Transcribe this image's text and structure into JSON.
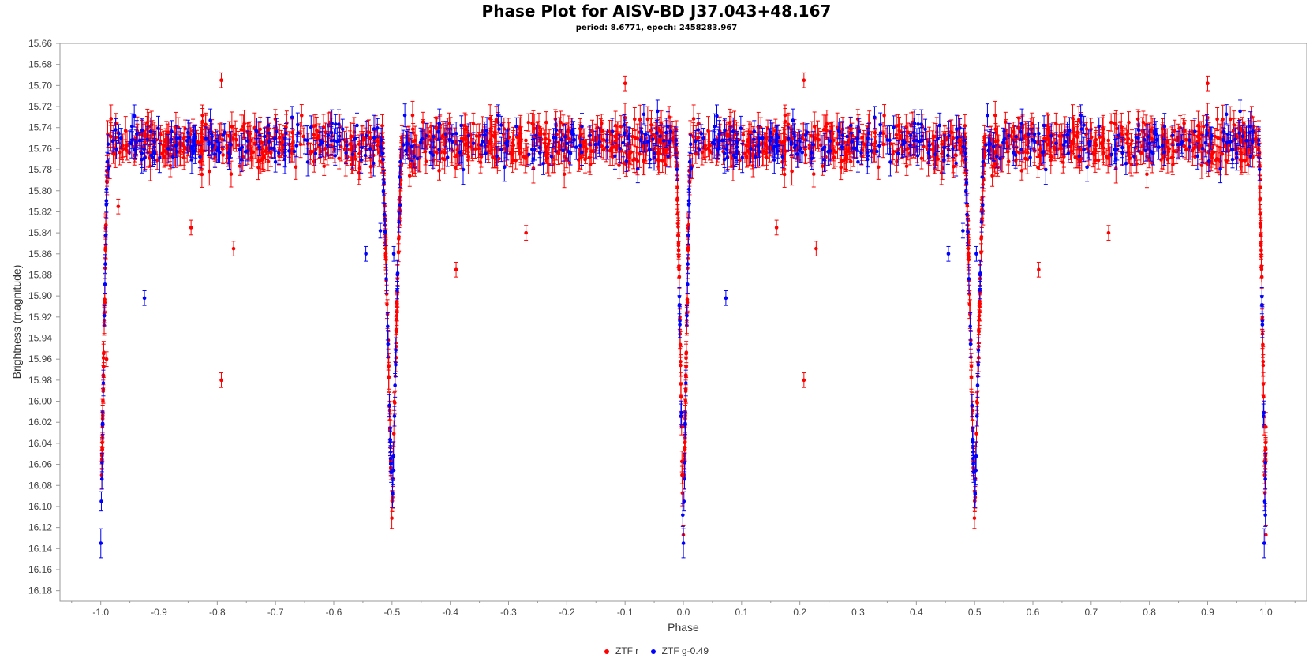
{
  "chart_data": {
    "type": "scatter",
    "title": "Phase Plot for AISV-BD J37.043+48.167",
    "subtitle": "period: 8.6771, epoch: 2458283.967",
    "xlabel": "Phase",
    "ylabel": "Brightness (magnitude)",
    "xlim": [
      -1.07,
      1.07
    ],
    "ylim": [
      16.19,
      15.66
    ],
    "y_inverted": true,
    "error_bars": true,
    "grid": false,
    "legend_position": "bottom-center",
    "x_ticks": [
      "-1.0",
      "-0.9",
      "-0.8",
      "-0.7",
      "-0.6",
      "-0.5",
      "-0.4",
      "-0.3",
      "-0.2",
      "-0.1",
      "0.0",
      "0.1",
      "0.2",
      "0.3",
      "0.4",
      "0.5",
      "0.6",
      "0.7",
      "0.8",
      "0.9",
      "1.0"
    ],
    "y_ticks": [
      "15.66",
      "15.68",
      "15.70",
      "15.72",
      "15.74",
      "15.76",
      "15.78",
      "15.80",
      "15.82",
      "15.84",
      "15.86",
      "15.88",
      "15.90",
      "15.92",
      "15.94",
      "15.96",
      "15.98",
      "16.00",
      "16.02",
      "16.04",
      "16.06",
      "16.08",
      "16.10",
      "16.12",
      "16.14",
      "16.16",
      "16.18"
    ],
    "period": 8.6771,
    "epoch": 2458283.967,
    "baseline_mag": 15.755,
    "eclipses": [
      {
        "phase": 0.0,
        "depth_mag": 16.14,
        "halfwidth": 0.012
      },
      {
        "phase": 0.5,
        "depth_mag": 16.11,
        "halfwidth": 0.017
      }
    ],
    "series": [
      {
        "name": "ZTF r",
        "color": "#ff0000",
        "outliers": [
          {
            "x": -0.99,
            "y": 15.96
          },
          {
            "x": -0.97,
            "y": 15.815
          },
          {
            "x": -0.845,
            "y": 15.835
          },
          {
            "x": -0.793,
            "y": 15.98
          },
          {
            "x": -0.772,
            "y": 15.855
          },
          {
            "x": -0.793,
            "y": 15.695
          },
          {
            "x": -0.39,
            "y": 15.875
          },
          {
            "x": -0.27,
            "y": 15.84
          },
          {
            "x": -0.1,
            "y": 15.698
          },
          {
            "x": 0.16,
            "y": 15.835
          },
          {
            "x": 0.207,
            "y": 15.98
          },
          {
            "x": 0.228,
            "y": 15.855
          },
          {
            "x": 0.207,
            "y": 15.695
          },
          {
            "x": 0.61,
            "y": 15.875
          },
          {
            "x": 0.73,
            "y": 15.84
          },
          {
            "x": 0.9,
            "y": 15.698
          }
        ]
      },
      {
        "name": "ZTF g-0.49",
        "color": "#0000ff",
        "outliers": [
          {
            "x": -0.925,
            "y": 15.902
          },
          {
            "x": -0.545,
            "y": 15.86
          },
          {
            "x": -0.52,
            "y": 15.838
          },
          {
            "x": -0.497,
            "y": 15.86
          },
          {
            "x": 0.073,
            "y": 15.902
          },
          {
            "x": 0.455,
            "y": 15.86
          },
          {
            "x": 0.48,
            "y": 15.838
          },
          {
            "x": 0.503,
            "y": 15.86
          }
        ]
      }
    ]
  }
}
